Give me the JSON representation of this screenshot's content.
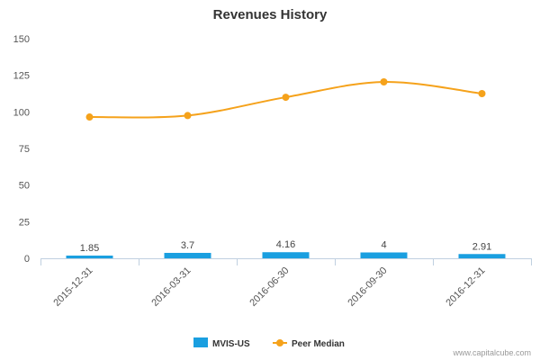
{
  "chart_data": {
    "type": "bar",
    "title": "Revenues History",
    "categories": [
      "2015-12-31",
      "2016-03-31",
      "2016-06-30",
      "2016-09-30",
      "2016-12-31"
    ],
    "series": [
      {
        "name": "MVIS-US",
        "type": "bar",
        "color": "#1a9fe0",
        "values": [
          1.85,
          3.7,
          4.16,
          4,
          2.91
        ],
        "labels": [
          "1.85",
          "3.7",
          "4.16",
          "4",
          "2.91"
        ]
      },
      {
        "name": "Peer Median",
        "type": "line",
        "color": "#f5a21b",
        "values": [
          96.5,
          97.5,
          110,
          120.5,
          112.5
        ]
      }
    ],
    "yticks": [
      "0",
      "25",
      "50",
      "75",
      "100",
      "125",
      "150"
    ],
    "ylim": [
      0,
      150
    ],
    "grid": false,
    "legend": "bottom-center"
  },
  "credit": "www.capitalcube.com"
}
